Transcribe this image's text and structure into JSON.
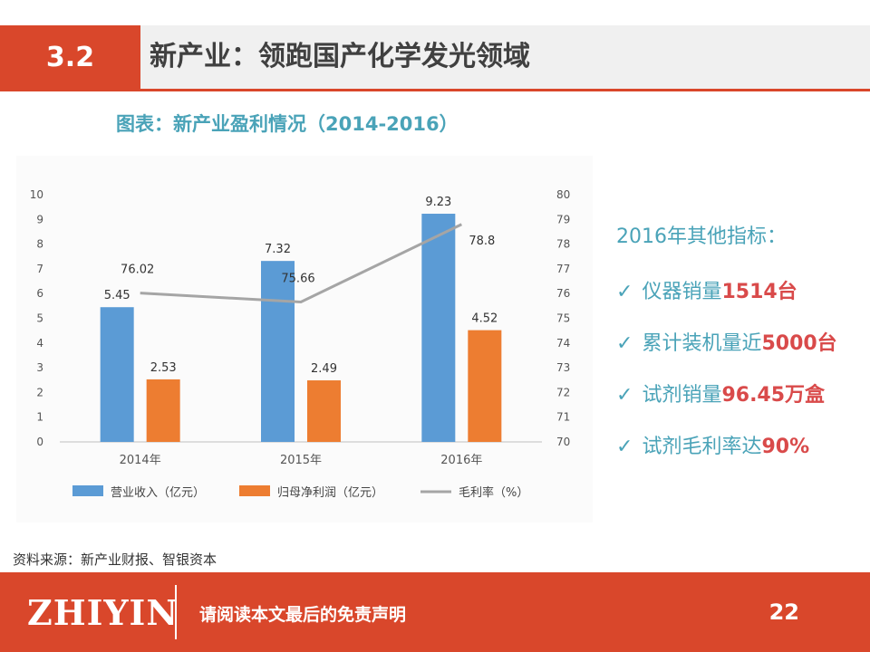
{
  "header": {
    "section_number": "3.2",
    "title": "新产业：领跑国产化学发光领域"
  },
  "chart_title": "图表：新产业盈利情况（2014-2016）",
  "chart_data": {
    "type": "bar",
    "categories": [
      "2014年",
      "2015年",
      "2016年"
    ],
    "series": [
      {
        "name": "营业收入（亿元）",
        "type": "bar",
        "axis": "left",
        "color": "#5b9bd5",
        "values": [
          5.45,
          7.32,
          9.23
        ],
        "labels": [
          "5.45",
          "7.32",
          "9.23"
        ]
      },
      {
        "name": "归母净利润（亿元）",
        "type": "bar",
        "axis": "left",
        "color": "#ed7d31",
        "values": [
          2.53,
          2.49,
          4.52
        ],
        "labels": [
          "2.53",
          "2.49",
          "4.52"
        ]
      },
      {
        "name": "毛利率（%）",
        "type": "line",
        "axis": "right",
        "color": "#a5a5a5",
        "values": [
          76.02,
          75.66,
          78.8
        ],
        "labels": [
          "76.02",
          "75.66",
          "78.8"
        ]
      }
    ],
    "y_left": {
      "min": 0,
      "max": 10,
      "ticks": [
        "0",
        "1",
        "2",
        "3",
        "4",
        "5",
        "6",
        "7",
        "8",
        "9",
        "10"
      ]
    },
    "y_right": {
      "min": 70,
      "max": 80,
      "ticks": [
        "70",
        "71",
        "72",
        "73",
        "74",
        "75",
        "76",
        "77",
        "78",
        "79",
        "80"
      ]
    },
    "legend_position": "bottom",
    "grid": false
  },
  "side": {
    "title": "2016年其他指标：",
    "check_icon": "check-icon",
    "items": [
      {
        "prefix": "仪器销量",
        "value": "1514台"
      },
      {
        "prefix": "累计装机量近",
        "value": "5000台"
      },
      {
        "prefix": "试剂销量",
        "value": "96.45万盒"
      },
      {
        "prefix": "试剂毛利率达",
        "value": "90%"
      }
    ]
  },
  "source": "资料来源：新产业财报、智银资本",
  "footer": {
    "logo": "ZHIYIN",
    "disclaimer": "请阅读本文最后的免责声明",
    "page": "22"
  },
  "colors": {
    "accent": "#d9472b",
    "teal": "#4aa3b8",
    "highlight": "#d94a4a"
  }
}
